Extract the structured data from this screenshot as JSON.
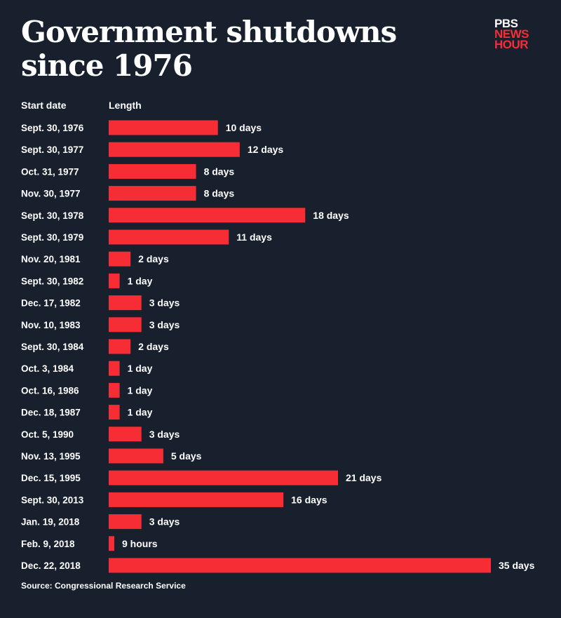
{
  "title": "Government shutdowns since 1976",
  "logo": {
    "line1": "PBS",
    "line2": "NEWS",
    "line3": "HOUR"
  },
  "colors": {
    "background": "#18202e",
    "bar": "#f62d35",
    "text": "#ffffff"
  },
  "source": "Source: Congressional Research Service",
  "chart_data": {
    "type": "bar",
    "orientation": "horizontal",
    "title": "Government shutdowns since 1976",
    "category_header": "Start date",
    "value_header": "Length",
    "unit": "days",
    "categories": [
      "Sept. 30, 1976",
      "Sept. 30, 1977",
      "Oct. 31, 1977",
      "Nov. 30, 1977",
      "Sept. 30, 1978",
      "Sept. 30, 1979",
      "Nov. 20, 1981",
      "Sept. 30, 1982",
      "Dec. 17, 1982",
      "Nov. 10, 1983",
      "Sept. 30, 1984",
      "Oct. 3, 1984",
      "Oct. 16, 1986",
      "Dec. 18, 1987",
      "Oct. 5, 1990",
      "Nov. 13, 1995",
      "Dec. 15, 1995",
      "Sept. 30, 2013",
      "Jan. 19, 2018",
      "Feb. 9, 2018",
      "Dec. 22, 2018"
    ],
    "values": [
      10,
      12,
      8,
      8,
      18,
      11,
      2,
      1,
      3,
      3,
      2,
      1,
      1,
      1,
      3,
      5,
      21,
      16,
      3,
      0.375,
      35
    ],
    "data_labels": [
      "10 days",
      "12 days",
      "8 days",
      "8 days",
      "18 days",
      "11 days",
      "2 days",
      "1 day",
      "3 days",
      "3 days",
      "2 days",
      "1 day",
      "1 day",
      "1 day",
      "3 days",
      "5 days",
      "21 days",
      "16 days",
      "3 days",
      "9 hours",
      "35 days"
    ],
    "xlim": [
      0,
      35
    ],
    "grid": false,
    "legend": "none"
  }
}
